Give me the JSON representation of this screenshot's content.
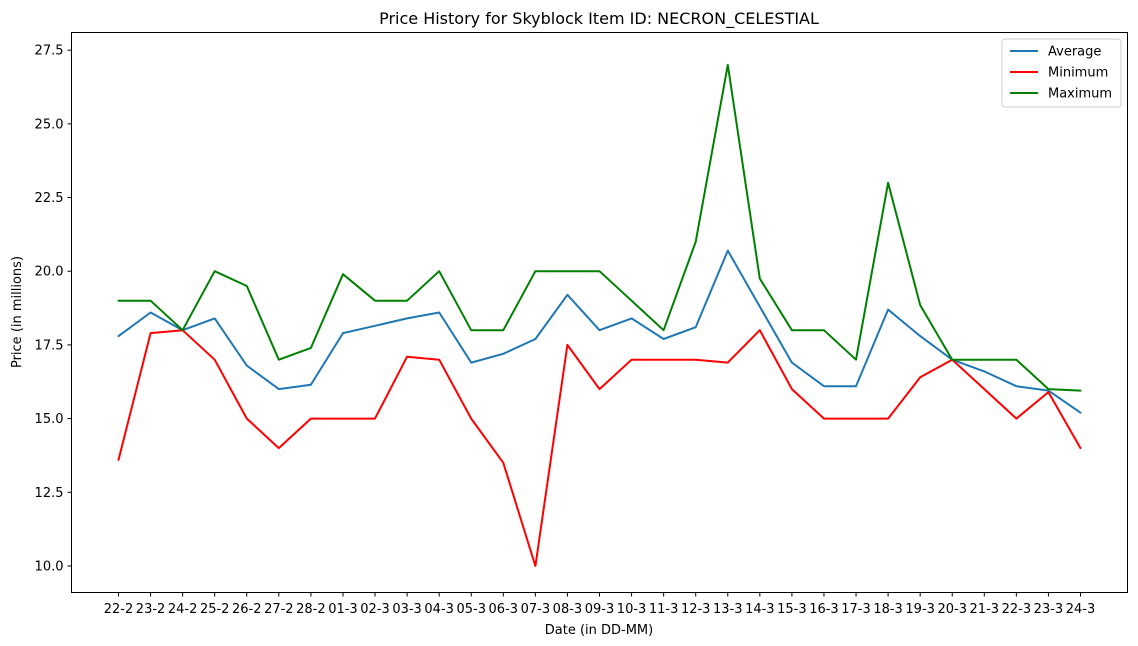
{
  "chart_data": {
    "type": "line",
    "title": "Price History for Skyblock Item ID: NECRON_CELESTIAL",
    "xlabel": "Date (in DD-MM)",
    "ylabel": "Price (in millions)",
    "categories": [
      "22-2",
      "23-2",
      "24-2",
      "25-2",
      "26-2",
      "27-2",
      "28-2",
      "01-3",
      "02-3",
      "03-3",
      "04-3",
      "05-3",
      "06-3",
      "07-3",
      "08-3",
      "09-3",
      "10-3",
      "11-3",
      "12-3",
      "13-3",
      "14-3",
      "15-3",
      "16-3",
      "17-3",
      "18-3",
      "19-3",
      "20-3",
      "21-3",
      "22-3",
      "23-3",
      "24-3"
    ],
    "ylim": [
      9.1,
      28.1
    ],
    "yticks": [
      10.0,
      12.5,
      15.0,
      17.5,
      20.0,
      22.5,
      25.0,
      27.5
    ],
    "ytick_labels": [
      "10.0",
      "12.5",
      "15.0",
      "17.5",
      "20.0",
      "22.5",
      "25.0",
      "27.5"
    ],
    "grid": false,
    "legend_position": "top-right",
    "series": [
      {
        "name": "Average",
        "color": "#1f77b4",
        "values": [
          17.8,
          18.6,
          18.0,
          18.4,
          16.8,
          16.0,
          16.15,
          17.9,
          18.15,
          18.4,
          18.6,
          16.9,
          17.2,
          17.7,
          19.2,
          18.0,
          18.4,
          17.7,
          18.1,
          20.7,
          18.8,
          16.9,
          16.1,
          16.1,
          18.7,
          17.8,
          17.0,
          16.6,
          16.1,
          15.95,
          15.2
        ]
      },
      {
        "name": "Minimum",
        "color": "#ff0000",
        "values": [
          13.6,
          17.9,
          18.0,
          17.0,
          15.0,
          14.0,
          15.0,
          15.0,
          15.0,
          17.1,
          17.0,
          15.0,
          13.5,
          10.0,
          17.5,
          16.0,
          17.0,
          17.0,
          17.0,
          16.9,
          18.0,
          16.0,
          15.0,
          15.0,
          15.0,
          16.4,
          17.0,
          16.0,
          15.0,
          15.9,
          14.0
        ]
      },
      {
        "name": "Maximum",
        "color": "#008000",
        "values": [
          19.0,
          19.0,
          18.0,
          20.0,
          19.5,
          17.0,
          17.4,
          19.9,
          19.0,
          19.0,
          20.0,
          18.0,
          18.0,
          20.0,
          20.0,
          20.0,
          19.0,
          18.0,
          21.0,
          27.0,
          19.75,
          18.0,
          18.0,
          17.0,
          23.0,
          18.85,
          17.0,
          17.0,
          17.0,
          16.0,
          15.95
        ]
      }
    ]
  }
}
